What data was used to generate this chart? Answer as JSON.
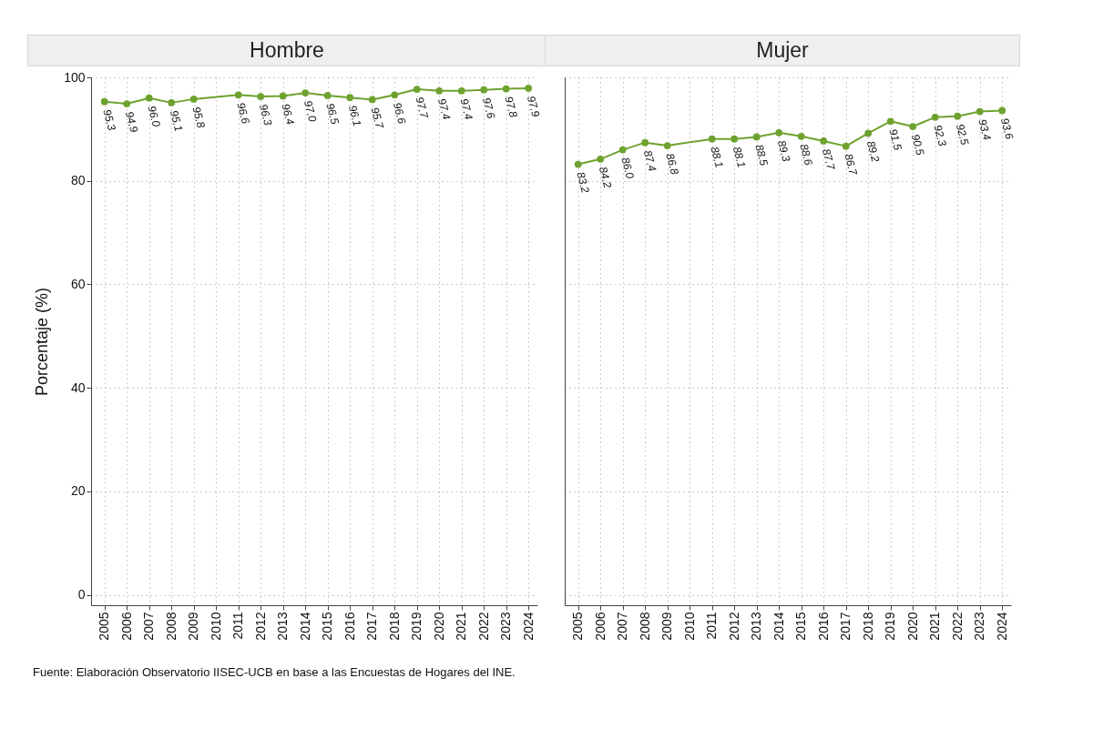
{
  "chart_data": [
    {
      "type": "line",
      "title": "Hombre",
      "ylabel": "Porcentaje (%)",
      "x": [
        2005,
        2006,
        2007,
        2008,
        2009,
        2011,
        2012,
        2013,
        2014,
        2015,
        2016,
        2017,
        2018,
        2019,
        2020,
        2021,
        2022,
        2023,
        2024
      ],
      "values": [
        95.3,
        94.9,
        96.0,
        95.1,
        95.8,
        96.6,
        96.3,
        96.4,
        97.0,
        96.5,
        96.1,
        95.7,
        96.6,
        97.7,
        97.4,
        97.4,
        97.6,
        97.8,
        97.9
      ],
      "color": "#6ea22e",
      "xlim": [
        2004.4,
        2024.4
      ],
      "ylim": [
        -2,
        100
      ],
      "xticks": [
        2005,
        2006,
        2007,
        2008,
        2009,
        2010,
        2011,
        2012,
        2013,
        2014,
        2015,
        2016,
        2017,
        2018,
        2019,
        2020,
        2021,
        2022,
        2023,
        2024
      ],
      "yticks": [
        0,
        20,
        40,
        60,
        80,
        100
      ],
      "grid": true,
      "marker": "circle",
      "line_style": "solid",
      "data_labels": true,
      "value_labels": [
        "95.3",
        "94.9",
        "96.0",
        "95.1",
        "95.8",
        "96.6",
        "96.3",
        "96.4",
        "97.0",
        "96.5",
        "96.1",
        "95.7",
        "96.6",
        "97.7",
        "97.4",
        "97.4",
        "97.6",
        "97.8",
        "97.9"
      ],
      "annotations": [
        "Fuente: Elaboración Observatorio IISEC-UCB en base a las Encuestas de Hogares del INE."
      ]
    },
    {
      "type": "line",
      "title": "Mujer",
      "x": [
        2005,
        2006,
        2007,
        2008,
        2009,
        2011,
        2012,
        2013,
        2014,
        2015,
        2016,
        2017,
        2018,
        2019,
        2020,
        2021,
        2022,
        2023,
        2024
      ],
      "values": [
        83.2,
        84.2,
        86.0,
        87.4,
        86.8,
        88.1,
        88.1,
        88.5,
        89.3,
        88.6,
        87.7,
        86.7,
        89.2,
        91.5,
        90.5,
        92.3,
        92.5,
        93.4,
        93.6
      ],
      "color": "#6ea22e",
      "xlim": [
        2004.4,
        2024.4
      ],
      "ylim": [
        -2,
        100
      ],
      "xticks": [
        2005,
        2006,
        2007,
        2008,
        2009,
        2010,
        2011,
        2012,
        2013,
        2014,
        2015,
        2016,
        2017,
        2018,
        2019,
        2020,
        2021,
        2022,
        2023,
        2024
      ],
      "yticks": [
        0,
        20,
        40,
        60,
        80,
        100
      ],
      "grid": true,
      "marker": "circle",
      "line_style": "solid",
      "tick_labels": "x",
      "data_labels": true,
      "value_labels": [
        "83.2",
        "84.2",
        "86.0",
        "87.4",
        "86.8",
        "88.1",
        "88.1",
        "88.5",
        "89.3",
        "88.6",
        "87.7",
        "86.7",
        "89.2",
        "91.5",
        "90.5",
        "92.3",
        "92.5",
        "93.4",
        "93.6"
      ]
    }
  ]
}
